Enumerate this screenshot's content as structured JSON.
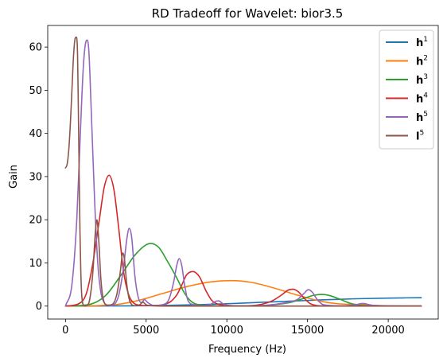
{
  "chart_data": {
    "type": "line",
    "title": "RD Tradeoff for Wavelet: bior3.5",
    "xlabel": "Frequency (Hz)",
    "ylabel": "Gain",
    "xlim": [
      -1100,
      23100
    ],
    "ylim": [
      -3,
      65
    ],
    "xticks": [
      0,
      5000,
      10000,
      15000,
      20000
    ],
    "xtick_labels": [
      "0",
      "5000",
      "10000",
      "15000",
      "20000"
    ],
    "yticks": [
      0,
      10,
      20,
      30,
      40,
      50,
      60
    ],
    "ytick_labels": [
      "0",
      "10",
      "20",
      "30",
      "40",
      "50",
      "60"
    ],
    "grid": false,
    "legend_position": "top-right",
    "series": [
      {
        "name": "h",
        "sup": "1",
        "color": "#1f77b4",
        "x": [
          0,
          4000,
          6000,
          8000,
          10000,
          12000,
          14000,
          16000,
          18000,
          20000,
          22050
        ],
        "y": [
          0,
          0.05,
          0.15,
          0.3,
          0.55,
          0.85,
          1.15,
          1.45,
          1.7,
          1.85,
          1.95
        ]
      },
      {
        "name": "h",
        "sup": "2",
        "color": "#ff7f0e",
        "x": [
          0,
          3000,
          4500,
          6000,
          7500,
          9000,
          10250,
          11500,
          13000,
          14500,
          16000,
          17000,
          18000,
          19000,
          20000,
          22050
        ],
        "y": [
          0,
          0.3,
          1.3,
          2.9,
          4.5,
          5.6,
          5.9,
          5.5,
          4.1,
          2.4,
          1.0,
          0.5,
          0.4,
          0.2,
          0.05,
          0
        ]
      },
      {
        "name": "h",
        "sup": "3",
        "color": "#2ca02c",
        "x": [
          0,
          1500,
          2500,
          3500,
          4300,
          5000,
          5300,
          5800,
          6300,
          6900,
          7300,
          7600,
          8000,
          9000,
          10000,
          11000,
          12000,
          13000,
          14000,
          14700,
          15400,
          15900,
          16400,
          17000,
          17600,
          18200,
          19000,
          22050
        ],
        "y": [
          0,
          0.4,
          2.5,
          7.5,
          11.8,
          14.2,
          14.5,
          13.5,
          10.5,
          6.5,
          3.5,
          1.8,
          0.6,
          0.1,
          0.05,
          0.05,
          0.1,
          0.35,
          0.9,
          1.7,
          2.5,
          2.7,
          2.4,
          1.6,
          0.7,
          0.2,
          0.05,
          0
        ]
      },
      {
        "name": "h",
        "sup": "4",
        "color": "#d62728",
        "x": [
          0,
          800,
          1300,
          1700,
          2100,
          2400,
          2700,
          3000,
          3300,
          3600,
          3900,
          4200,
          4600,
          5000,
          5800,
          6500,
          6900,
          7200,
          7500,
          7900,
          8300,
          8700,
          9100,
          10000,
          11000,
          12000,
          12800,
          13400,
          13800,
          14100,
          14400,
          14800,
          15200,
          16000,
          18000,
          22050
        ],
        "y": [
          0,
          0.5,
          3,
          10,
          20,
          27.5,
          30.3,
          27,
          18,
          8,
          2.8,
          0.8,
          0.2,
          0.1,
          0.2,
          1.0,
          2.6,
          4.8,
          7.2,
          8.0,
          6.8,
          3.6,
          1.2,
          0.2,
          0.05,
          0.3,
          1.2,
          2.6,
          3.7,
          3.9,
          3.4,
          1.8,
          0.5,
          0.05,
          0,
          0
        ]
      },
      {
        "name": "h",
        "sup": "5",
        "color": "#9467bd",
        "x": [
          0,
          400,
          700,
          900,
          1100,
          1250,
          1350,
          1450,
          1600,
          1800,
          2000,
          2200,
          2400,
          2600,
          2800,
          3000,
          3300,
          3600,
          3800,
          3950,
          4100,
          4300,
          4500,
          4700,
          4900,
          5100,
          5500,
          6000,
          6400,
          6700,
          6900,
          7050,
          7200,
          7400,
          7600,
          8000,
          8500,
          9000,
          9300,
          9500,
          9700,
          10000,
          11000,
          12000,
          13000,
          13800,
          14400,
          14800,
          15050,
          15300,
          15600,
          16000,
          17000,
          18000,
          18400,
          19000,
          20000,
          22050
        ],
        "y": [
          0,
          5,
          20,
          38,
          55,
          61,
          61.6,
          59,
          45,
          25,
          10,
          3,
          0.8,
          0.2,
          0.1,
          0.3,
          2.5,
          9,
          15.5,
          18.0,
          16,
          7,
          2.2,
          0.8,
          1.5,
          0.8,
          0.1,
          0.3,
          1.5,
          5.5,
          9.5,
          11.0,
          9.5,
          4.5,
          1.2,
          0.3,
          0.1,
          0.4,
          1.1,
          1.2,
          0.7,
          0.1,
          0.05,
          0.1,
          0.4,
          0.9,
          1.6,
          3.0,
          3.8,
          3.2,
          1.5,
          0.3,
          0.05,
          0.3,
          0.6,
          0.2,
          0.05,
          0
        ]
      },
      {
        "name": "l",
        "sup": "5",
        "color": "#8c564b",
        "x": [
          0,
          100,
          200,
          300,
          400,
          500,
          600,
          680,
          750,
          800,
          850,
          900,
          950,
          1000,
          1050,
          1100,
          1200,
          1300,
          1500,
          1700,
          1850,
          1950,
          2050,
          2200,
          2350,
          2600,
          2900,
          3200,
          3400,
          3550,
          3650,
          3800,
          4000,
          4300,
          4600,
          4800,
          5000,
          5500,
          7000,
          9000,
          22050
        ],
        "y": [
          32,
          32.8,
          36,
          42,
          50,
          58,
          62,
          62.3,
          58,
          45,
          30,
          17,
          8,
          3,
          1,
          0.3,
          0,
          0.1,
          1.5,
          8,
          17,
          20,
          16,
          6,
          1.5,
          0.2,
          0.4,
          3,
          8,
          12.3,
          11,
          5,
          1,
          0.1,
          0.3,
          0.9,
          0.3,
          0.05,
          0,
          0,
          0
        ]
      }
    ]
  }
}
